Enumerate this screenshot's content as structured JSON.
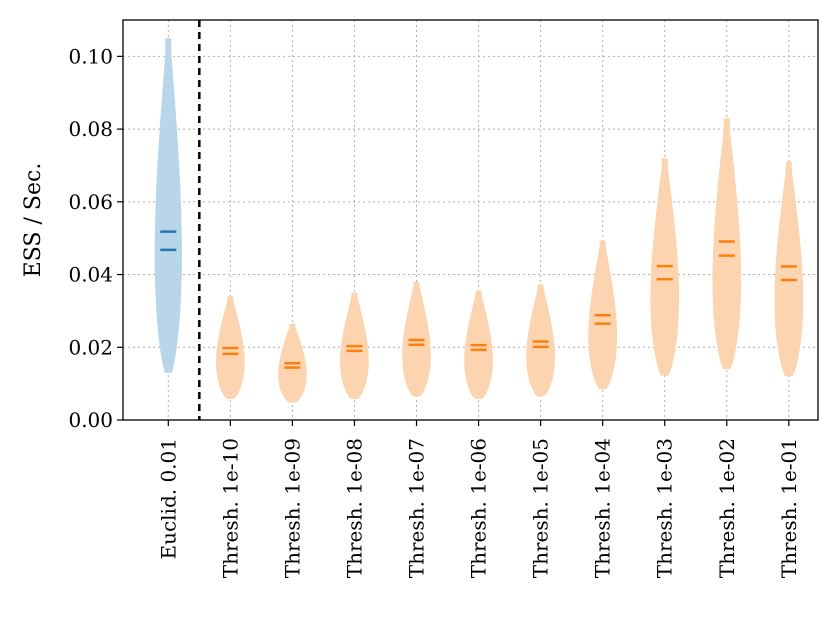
{
  "chart_data": {
    "type": "violin",
    "ylabel": "ESS / Sec.",
    "ylim": [
      0,
      0.11
    ],
    "yticks": [
      "0.00",
      "0.02",
      "0.04",
      "0.06",
      "0.08",
      "0.10"
    ],
    "grid": true,
    "divider_after_category": "Euclid. 0.01",
    "colors": {
      "euclid_fill": "#b9d5ea",
      "euclid_line": "#1f77b4",
      "thresh_fill": "#fdd4b0",
      "thresh_line": "#ff7f0e"
    },
    "violins": [
      {
        "category": "Euclid. 0.01",
        "group": "euclid",
        "min": 0.013,
        "max": 0.105,
        "mean": 0.0518,
        "median": 0.0468
      },
      {
        "category": "Thresh. 1e-10",
        "group": "thresh",
        "min": 0.0058,
        "max": 0.034,
        "mean": 0.0198,
        "median": 0.0182
      },
      {
        "category": "Thresh. 1e-09",
        "group": "thresh",
        "min": 0.0048,
        "max": 0.0265,
        "mean": 0.0156,
        "median": 0.0144
      },
      {
        "category": "Thresh. 1e-08",
        "group": "thresh",
        "min": 0.0058,
        "max": 0.035,
        "mean": 0.0203,
        "median": 0.019
      },
      {
        "category": "Thresh. 1e-07",
        "group": "thresh",
        "min": 0.0065,
        "max": 0.038,
        "mean": 0.022,
        "median": 0.0207
      },
      {
        "category": "Thresh. 1e-06",
        "group": "thresh",
        "min": 0.0058,
        "max": 0.0355,
        "mean": 0.0206,
        "median": 0.0193
      },
      {
        "category": "Thresh. 1e-05",
        "group": "thresh",
        "min": 0.0065,
        "max": 0.0373,
        "mean": 0.0216,
        "median": 0.0201
      },
      {
        "category": "Thresh. 1e-04",
        "group": "thresh",
        "min": 0.0085,
        "max": 0.0493,
        "mean": 0.0288,
        "median": 0.0265
      },
      {
        "category": "Thresh. 1e-03",
        "group": "thresh",
        "min": 0.0122,
        "max": 0.072,
        "mean": 0.0423,
        "median": 0.0387
      },
      {
        "category": "Thresh. 1e-02",
        "group": "thresh",
        "min": 0.014,
        "max": 0.083,
        "mean": 0.0491,
        "median": 0.0452
      },
      {
        "category": "Thresh. 1e-01",
        "group": "thresh",
        "min": 0.012,
        "max": 0.071,
        "mean": 0.0422,
        "median": 0.0385
      }
    ]
  }
}
